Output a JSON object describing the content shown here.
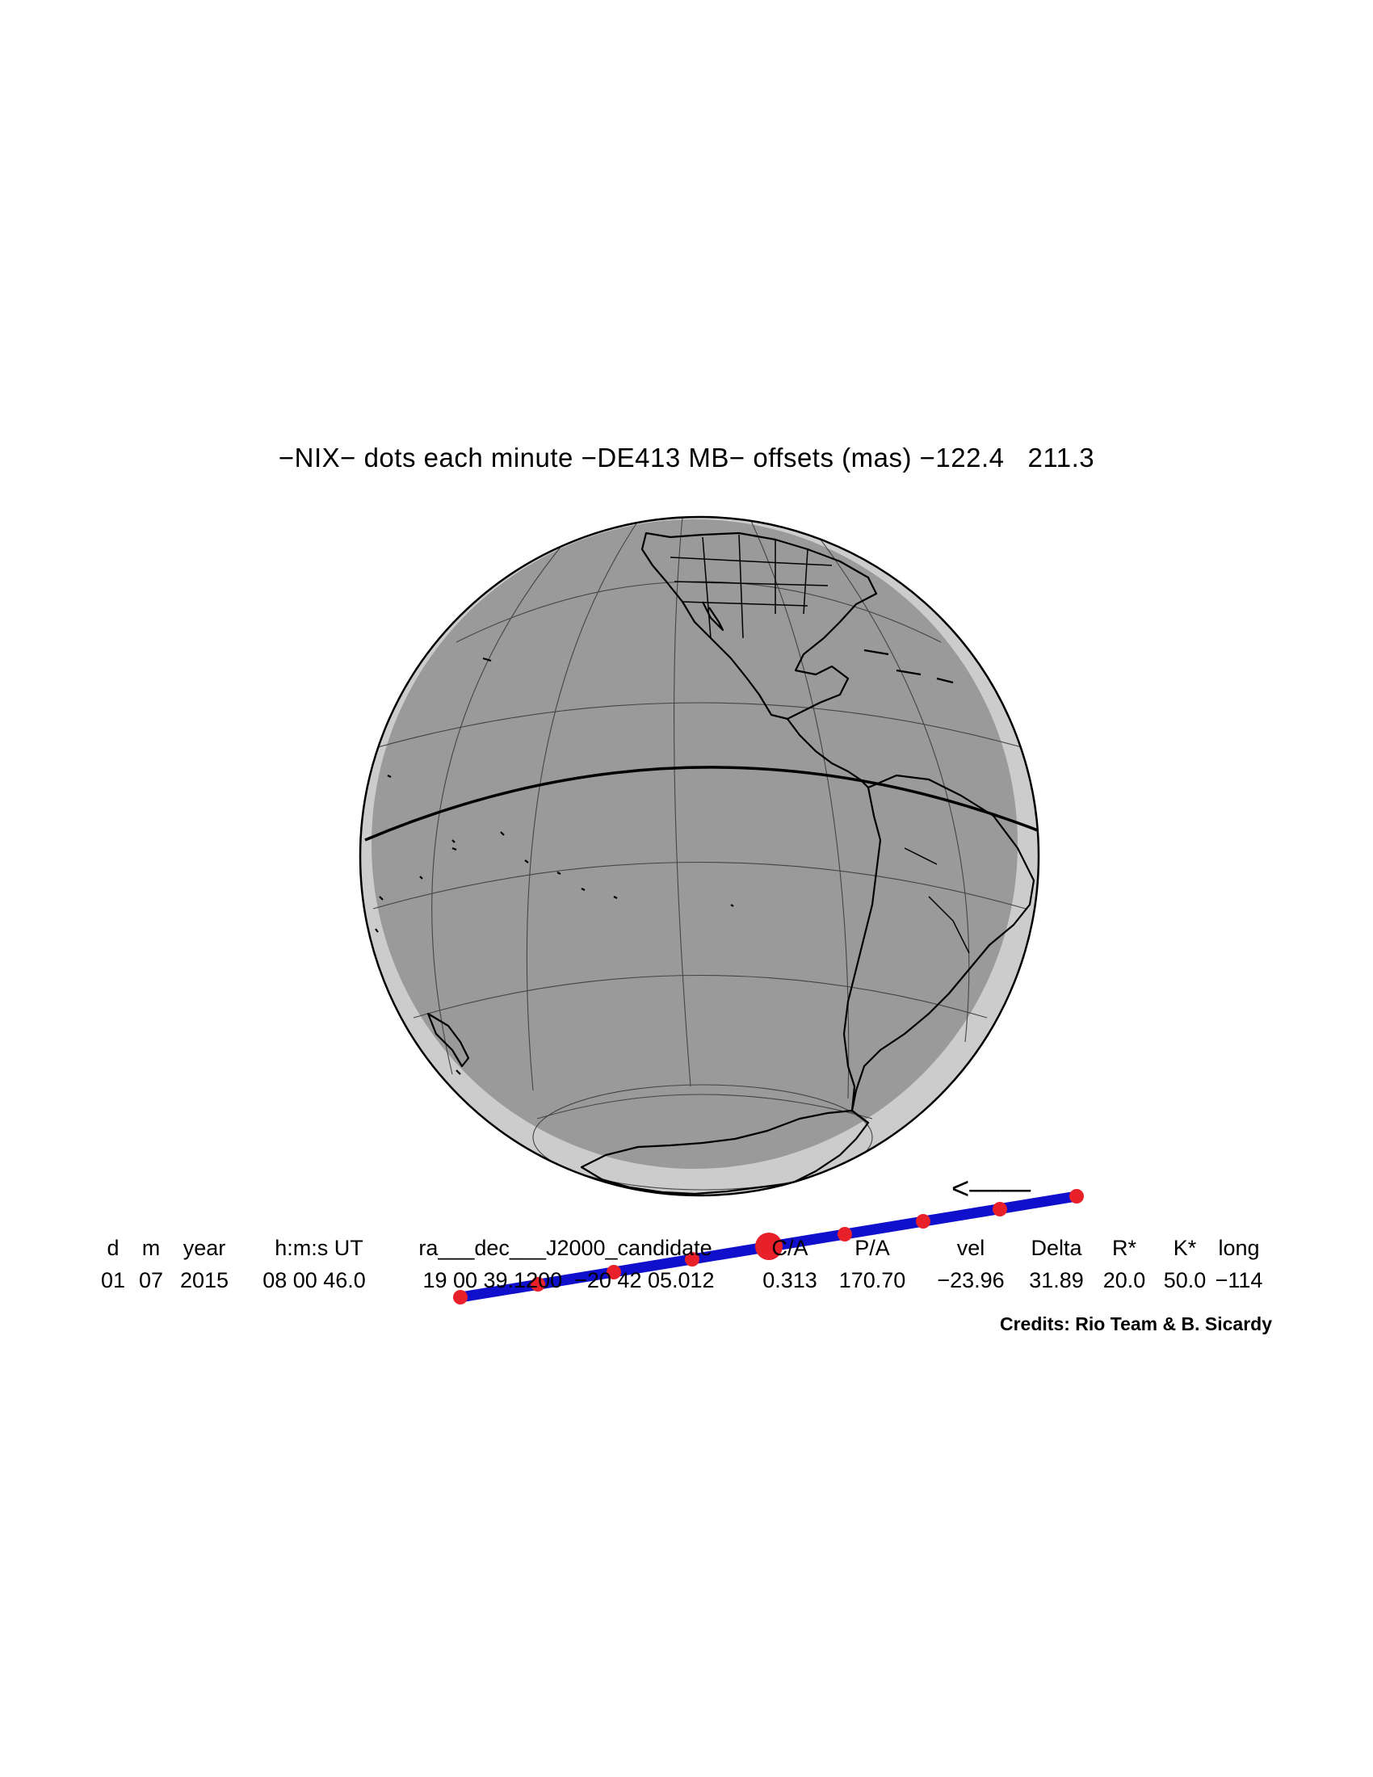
{
  "title": "−NIX− dots each minute −DE413 MB− offsets (mas) −122.4   211.3",
  "direction_marker": "<——",
  "table": {
    "headers": [
      "d",
      "m",
      "year",
      "h:m:s UT",
      "ra___dec___J2000_candidate",
      "C/A",
      "P/A",
      "vel",
      "Delta",
      "R*",
      "K*",
      "long"
    ],
    "values": [
      "01",
      "07",
      "2015",
      "08 00 46.0",
      "19 00 39.1200  −20 42 05.012",
      "0.313",
      "170.70",
      "−23.96",
      "31.89",
      "20.0",
      "50.0",
      "−114"
    ]
  },
  "credits": "Credits: Rio Team & B. Sicardy",
  "colors": {
    "night_side": "#9a9a9a",
    "day_limb": "#cccccc",
    "track": "#1010cc",
    "minute_dots": "#e8202a",
    "coastline": "#000000",
    "graticule": "#444444"
  },
  "track": {
    "minute_dots": 9,
    "closest_approach_dot": 5
  }
}
